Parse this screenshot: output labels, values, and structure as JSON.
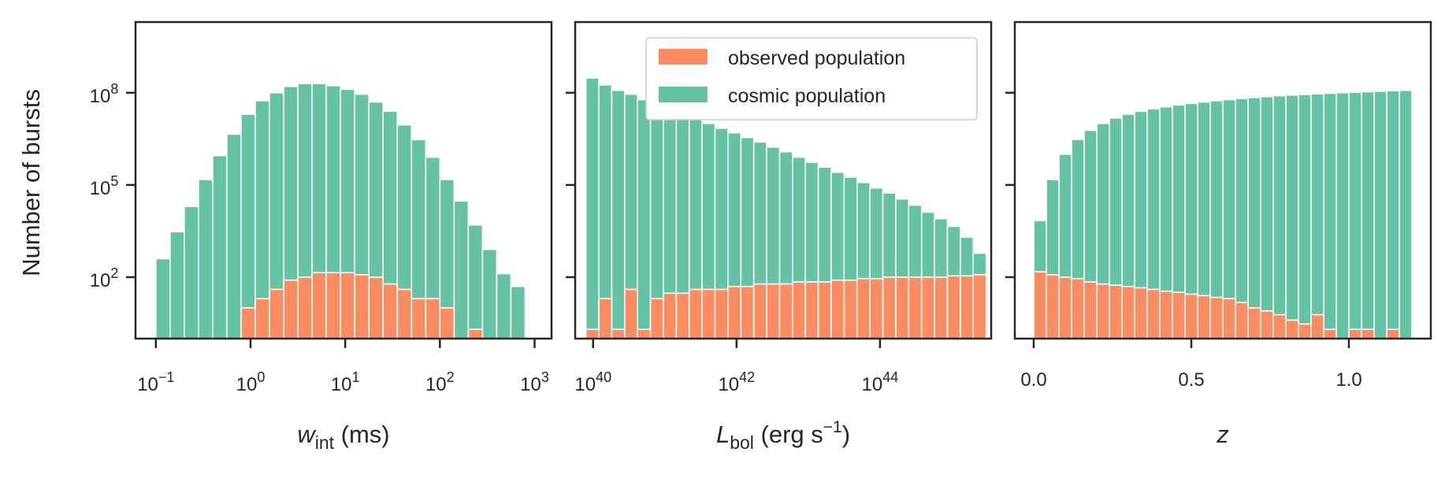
{
  "colors": {
    "observed": "#fc8d62",
    "cosmic": "#66c2a5",
    "frame": "#262626",
    "background": "#ffffff"
  },
  "ylabel": "Number of bursts",
  "legend": {
    "placement": "top-right of middle panel",
    "entries": [
      {
        "key": "observed",
        "label": "observed population"
      },
      {
        "key": "cosmic",
        "label": "cosmic population"
      }
    ]
  },
  "chart_data": [
    {
      "type": "bar",
      "stacking": "overlaid",
      "x_scale": "log",
      "y_scale": "log",
      "xlabel": {
        "symbol": "w",
        "sub": "int",
        "unit": "(ms)"
      },
      "ylabel": "Number of bursts",
      "xlim": [
        0.061,
        1510
      ],
      "ylim": [
        1,
        20000000000
      ],
      "x_ticks": [
        {
          "base": "10",
          "exp": "−1",
          "value": 0.1
        },
        {
          "base": "10",
          "exp": "0",
          "value": 1
        },
        {
          "base": "10",
          "exp": "1",
          "value": 10
        },
        {
          "base": "10",
          "exp": "2",
          "value": 100
        },
        {
          "base": "10",
          "exp": "3",
          "value": 1000
        }
      ],
      "y_ticks": [
        {
          "base": "10",
          "exp": "2",
          "value": 100
        },
        {
          "base": "10",
          "exp": "5",
          "value": 100000
        },
        {
          "base": "10",
          "exp": "8",
          "value": 100000000
        }
      ],
      "bin_edges_log10": [
        -1.0,
        -0.85,
        -0.7,
        -0.55,
        -0.4,
        -0.25,
        -0.1,
        0.05,
        0.2,
        0.35,
        0.5,
        0.65,
        0.8,
        0.95,
        1.1,
        1.25,
        1.4,
        1.55,
        1.7,
        1.85,
        2.0,
        2.15,
        2.3,
        2.45,
        2.6,
        2.75,
        2.9
      ],
      "series": [
        {
          "key": "cosmic",
          "name": "cosmic population",
          "values": [
            400,
            3000,
            20000,
            150000,
            900000,
            4500000,
            20000000,
            55000000,
            100000000,
            160000000,
            200000000,
            200000000,
            170000000,
            130000000,
            90000000,
            50000000,
            25000000,
            9000000,
            3000000,
            800000,
            150000,
            30000,
            5000,
            800,
            130,
            50
          ]
        },
        {
          "key": "observed",
          "name": "observed population",
          "values": [
            0,
            0,
            0,
            0,
            0,
            0,
            10,
            20,
            40,
            80,
            100,
            140,
            140,
            140,
            120,
            100,
            60,
            40,
            20,
            20,
            10,
            0,
            2,
            0,
            0,
            0
          ]
        }
      ]
    },
    {
      "type": "bar",
      "stacking": "overlaid",
      "x_scale": "log",
      "y_scale": "log",
      "xlabel": {
        "symbol": "L",
        "sub": "bol",
        "unit": "(erg s−1)"
      },
      "xlim_log10": [
        39.75,
        45.55
      ],
      "ylim": [
        1,
        20000000000
      ],
      "x_ticks": [
        {
          "base": "10",
          "exp": "40",
          "value_log10": 40
        },
        {
          "base": "10",
          "exp": "42",
          "value_log10": 42
        },
        {
          "base": "10",
          "exp": "44",
          "value_log10": 44
        }
      ],
      "bin_edges_log10": [
        39.9,
        40.08,
        40.26,
        40.44,
        40.62,
        40.8,
        40.98,
        41.16,
        41.34,
        41.52,
        41.7,
        41.88,
        42.06,
        42.24,
        42.42,
        42.6,
        42.78,
        42.96,
        43.14,
        43.32,
        43.5,
        43.68,
        43.86,
        44.04,
        44.22,
        44.4,
        44.58,
        44.76,
        44.94,
        45.12,
        45.3,
        45.48
      ],
      "series": [
        {
          "key": "cosmic",
          "name": "cosmic population",
          "values": [
            300000000,
            180000000,
            120000000,
            90000000,
            60000000,
            40000000,
            28000000,
            20000000,
            14000000,
            10000000,
            7000000,
            5000000,
            3500000,
            2500000,
            1700000,
            1200000,
            800000,
            550000,
            380000,
            260000,
            180000,
            120000,
            80000,
            55000,
            35000,
            22000,
            13000,
            8000,
            4500,
            2000,
            600
          ]
        },
        {
          "key": "observed",
          "name": "observed population",
          "values": [
            2,
            20,
            2,
            40,
            2,
            20,
            30,
            30,
            40,
            40,
            40,
            50,
            50,
            60,
            60,
            60,
            70,
            70,
            70,
            80,
            80,
            90,
            90,
            100,
            100,
            100,
            100,
            100,
            110,
            110,
            120
          ]
        }
      ]
    },
    {
      "type": "bar",
      "stacking": "overlaid",
      "x_scale": "linear",
      "y_scale": "log",
      "xlabel": {
        "symbol": "z",
        "sub": "",
        "unit": ""
      },
      "xlim": [
        -0.06,
        1.26
      ],
      "ylim": [
        1,
        20000000000
      ],
      "x_ticks": [
        {
          "label": "0.0",
          "value": 0.0
        },
        {
          "label": "0.5",
          "value": 0.5
        },
        {
          "label": "1.0",
          "value": 1.0
        }
      ],
      "bin_edges": [
        0.0,
        0.04,
        0.08,
        0.12,
        0.16,
        0.2,
        0.24,
        0.28,
        0.32,
        0.36,
        0.4,
        0.44,
        0.48,
        0.52,
        0.56,
        0.6,
        0.64,
        0.68,
        0.72,
        0.76,
        0.8,
        0.84,
        0.88,
        0.92,
        0.96,
        1.0,
        1.04,
        1.08,
        1.12,
        1.16,
        1.2
      ],
      "series": [
        {
          "key": "cosmic",
          "name": "cosmic population",
          "values": [
            7000,
            150000,
            1000000,
            3000000,
            6000000,
            10000000,
            15000000,
            20000000,
            25000000,
            30000000,
            35000000,
            40000000,
            45000000,
            50000000,
            55000000,
            60000000,
            65000000,
            70000000,
            75000000,
            80000000,
            84000000,
            88000000,
            92000000,
            96000000,
            100000000,
            104000000,
            108000000,
            112000000,
            116000000,
            120000000
          ]
        },
        {
          "key": "observed",
          "name": "observed population",
          "values": [
            150,
            120,
            100,
            90,
            70,
            60,
            55,
            50,
            45,
            40,
            35,
            32,
            28,
            25,
            22,
            20,
            15,
            10,
            8,
            6,
            4,
            3,
            6,
            2,
            0,
            2,
            2,
            0,
            2,
            0
          ]
        }
      ]
    }
  ]
}
